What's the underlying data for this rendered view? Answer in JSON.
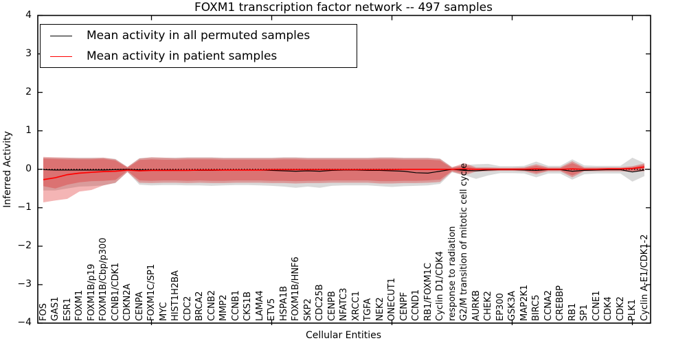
{
  "chart_data": {
    "type": "line",
    "title": "FOXM1 transcription factor network -- 497 samples",
    "xlabel": "Cellular Entities",
    "ylabel": "Inferred Activity",
    "ylim": [
      -4,
      4
    ],
    "yticks": [
      4,
      3,
      2,
      1,
      0,
      -1,
      -2,
      -3,
      -4
    ],
    "yticklabels": [
      "4",
      "3",
      "2",
      "1",
      "0",
      "−1",
      "−2",
      "−3",
      "−4"
    ],
    "x_major_ticks": [
      10,
      20,
      30,
      40,
      50
    ],
    "grid": false,
    "legend_position": "upper left",
    "categories": [
      "FOS",
      "GAS1",
      "ESR1",
      "FOXM1",
      "FOXM1B/p19",
      "FOXM1B/Cbp/p300",
      "CCNB1/CDK1",
      "CDKN2A",
      "CENPA",
      "FOXM1C/SP1",
      "MYC",
      "HIST1H2BA",
      "CDC2",
      "BRCA2",
      "CCNB2",
      "MMP2",
      "CCNB1",
      "CKS1B",
      "LAMA4",
      "ETV5",
      "HSPA1B",
      "FOXM1B/HNF6",
      "SKP2",
      "CDC25B",
      "CENPB",
      "NFATC3",
      "XRCC1",
      "TGFA",
      "NEK2",
      "ONECUT1",
      "CENPF",
      "CCND1",
      "RB1/FOXM1C",
      "Cyclin D1/CDK4",
      "response to radiation",
      "G2/M transition of mitotic cell cycle",
      "AURKB",
      "CHEK2",
      "EP300",
      "GSK3A",
      "MAP2K1",
      "BIRC5",
      "CCNA2",
      "CREBBP",
      "RB1",
      "SP1",
      "CCNE1",
      "CDK4",
      "CDK2",
      "PLK1",
      "Cyclin A-E1/CDK1-2"
    ],
    "zero_line": {
      "value": 0,
      "style": "dotted",
      "color": "#000000"
    },
    "series": [
      {
        "name": "Mean activity in all permuted samples",
        "color": "#000000",
        "width": 1.2,
        "values": [
          -0.01,
          -0.02,
          -0.02,
          -0.02,
          -0.02,
          -0.02,
          -0.01,
          0.0,
          -0.02,
          -0.02,
          -0.02,
          -0.02,
          -0.03,
          -0.03,
          -0.03,
          -0.02,
          -0.02,
          -0.02,
          -0.02,
          -0.03,
          -0.04,
          -0.05,
          -0.04,
          -0.05,
          -0.03,
          -0.02,
          -0.02,
          -0.03,
          -0.03,
          -0.04,
          -0.05,
          -0.09,
          -0.1,
          -0.05,
          0.0,
          -0.03,
          -0.04,
          -0.02,
          -0.01,
          -0.01,
          -0.02,
          -0.03,
          -0.01,
          -0.01,
          -0.05,
          -0.03,
          -0.02,
          -0.01,
          -0.01,
          -0.07,
          -0.02
        ]
      },
      {
        "name": "Mean activity in patient samples",
        "color": "#ff0000",
        "width": 1.7,
        "values": [
          -0.27,
          -0.22,
          -0.14,
          -0.1,
          -0.08,
          -0.06,
          -0.05,
          -0.02,
          -0.04,
          -0.03,
          -0.03,
          -0.03,
          -0.03,
          -0.02,
          -0.02,
          -0.02,
          -0.02,
          -0.02,
          -0.02,
          -0.01,
          -0.01,
          -0.01,
          -0.01,
          -0.01,
          -0.01,
          -0.01,
          -0.01,
          -0.01,
          -0.01,
          -0.01,
          0.0,
          0.0,
          0.0,
          0.0,
          0.0,
          0.01,
          0.0,
          0.0,
          0.0,
          0.0,
          0.0,
          0.01,
          0.0,
          0.0,
          0.01,
          0.0,
          0.0,
          0.01,
          0.01,
          0.02,
          0.06
        ]
      }
    ],
    "bands": [
      {
        "name": "permuted-samples-range",
        "color": "rgba(120,120,120,0.28)",
        "upper": [
          0.3,
          0.3,
          0.3,
          0.3,
          0.3,
          0.3,
          0.27,
          0.06,
          0.29,
          0.31,
          0.3,
          0.3,
          0.31,
          0.31,
          0.31,
          0.3,
          0.3,
          0.3,
          0.3,
          0.3,
          0.31,
          0.31,
          0.3,
          0.3,
          0.3,
          0.3,
          0.3,
          0.3,
          0.31,
          0.31,
          0.3,
          0.3,
          0.3,
          0.28,
          0.06,
          0.11,
          0.13,
          0.14,
          0.08,
          0.08,
          0.09,
          0.2,
          0.09,
          0.09,
          0.26,
          0.1,
          0.09,
          0.09,
          0.09,
          0.3,
          0.16
        ],
        "lower": [
          -0.55,
          -0.55,
          -0.5,
          -0.45,
          -0.44,
          -0.42,
          -0.36,
          -0.07,
          -0.4,
          -0.42,
          -0.41,
          -0.41,
          -0.42,
          -0.42,
          -0.43,
          -0.42,
          -0.41,
          -0.41,
          -0.42,
          -0.43,
          -0.45,
          -0.48,
          -0.45,
          -0.48,
          -0.43,
          -0.42,
          -0.42,
          -0.42,
          -0.44,
          -0.46,
          -0.44,
          -0.43,
          -0.42,
          -0.38,
          -0.08,
          -0.15,
          -0.25,
          -0.16,
          -0.1,
          -0.1,
          -0.11,
          -0.21,
          -0.11,
          -0.11,
          -0.27,
          -0.13,
          -0.11,
          -0.11,
          -0.11,
          -0.32,
          -0.18
        ]
      },
      {
        "name": "patient-samples-range-outer",
        "color": "rgba(222,31,31,0.33)",
        "upper": [
          0.32,
          0.31,
          0.3,
          0.29,
          0.29,
          0.3,
          0.26,
          0.06,
          0.28,
          0.31,
          0.3,
          0.29,
          0.3,
          0.3,
          0.3,
          0.29,
          0.29,
          0.29,
          0.29,
          0.29,
          0.3,
          0.3,
          0.29,
          0.29,
          0.29,
          0.29,
          0.29,
          0.29,
          0.3,
          0.3,
          0.29,
          0.29,
          0.29,
          0.27,
          0.05,
          0.16,
          0.05,
          0.05,
          0.04,
          0.04,
          0.05,
          0.13,
          0.05,
          0.05,
          0.21,
          0.05,
          0.05,
          0.05,
          0.05,
          0.08,
          0.15
        ],
        "lower": [
          -0.86,
          -0.81,
          -0.77,
          -0.58,
          -0.54,
          -0.42,
          -0.35,
          -0.07,
          -0.35,
          -0.36,
          -0.35,
          -0.35,
          -0.36,
          -0.35,
          -0.36,
          -0.36,
          -0.35,
          -0.35,
          -0.35,
          -0.36,
          -0.36,
          -0.37,
          -0.36,
          -0.36,
          -0.35,
          -0.35,
          -0.35,
          -0.35,
          -0.37,
          -0.37,
          -0.36,
          -0.36,
          -0.35,
          -0.33,
          -0.06,
          -0.16,
          -0.06,
          -0.05,
          -0.04,
          -0.04,
          -0.05,
          -0.13,
          -0.05,
          -0.05,
          -0.21,
          -0.05,
          -0.05,
          -0.05,
          -0.05,
          -0.07,
          -0.05
        ]
      },
      {
        "name": "patient-samples-range-inner",
        "color": "rgba(222,31,31,0.33)",
        "upper": [
          0.28,
          0.27,
          0.26,
          0.26,
          0.26,
          0.27,
          0.23,
          0.04,
          0.24,
          0.26,
          0.25,
          0.25,
          0.26,
          0.26,
          0.26,
          0.25,
          0.25,
          0.25,
          0.25,
          0.25,
          0.26,
          0.26,
          0.25,
          0.25,
          0.25,
          0.25,
          0.25,
          0.25,
          0.26,
          0.26,
          0.25,
          0.25,
          0.25,
          0.23,
          0.03,
          0.1,
          0.03,
          0.03,
          0.03,
          0.03,
          0.03,
          0.09,
          0.03,
          0.03,
          0.16,
          0.03,
          0.03,
          0.03,
          0.03,
          0.05,
          0.12
        ],
        "lower": [
          -0.44,
          -0.5,
          -0.4,
          -0.34,
          -0.31,
          -0.3,
          -0.28,
          -0.04,
          -0.29,
          -0.3,
          -0.29,
          -0.29,
          -0.3,
          -0.29,
          -0.3,
          -0.3,
          -0.29,
          -0.29,
          -0.29,
          -0.3,
          -0.3,
          -0.31,
          -0.3,
          -0.3,
          -0.29,
          -0.29,
          -0.29,
          -0.29,
          -0.31,
          -0.31,
          -0.3,
          -0.3,
          -0.29,
          -0.27,
          -0.04,
          -0.1,
          -0.04,
          -0.03,
          -0.03,
          -0.03,
          -0.03,
          -0.09,
          -0.03,
          -0.03,
          -0.16,
          -0.03,
          -0.03,
          -0.03,
          -0.03,
          -0.04,
          -0.02
        ]
      }
    ]
  }
}
